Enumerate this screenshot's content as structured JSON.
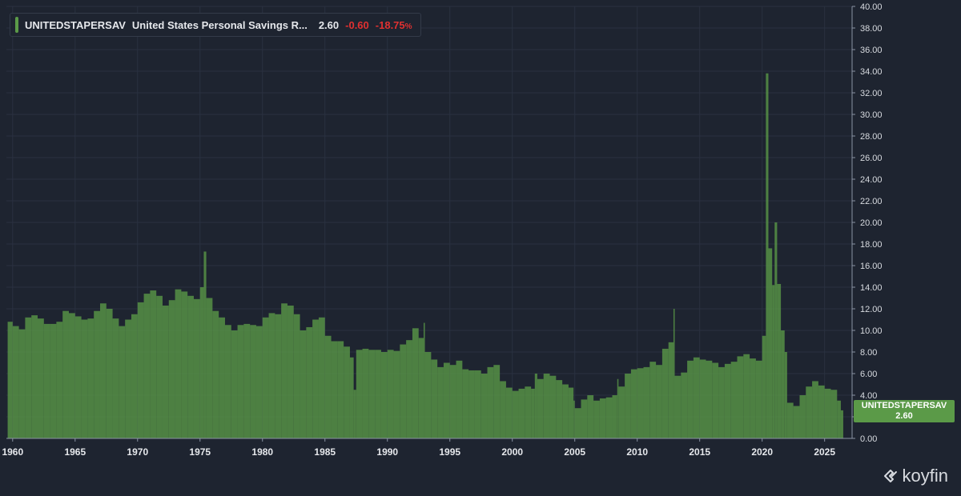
{
  "legend": {
    "ticker": "UNITEDSTAPERSAV",
    "name": "United States Personal Savings R...",
    "value": "2.60",
    "change": "-0.60",
    "change_pct": "-18.75",
    "pct_symbol": "%"
  },
  "price_tag": {
    "ticker": "UNITEDSTAPERSAV",
    "value": "2.60"
  },
  "brand": {
    "name": "koyfin"
  },
  "colors": {
    "background": "#1e2430",
    "bar": "#5b9a48",
    "grid": "#2a3140",
    "negative": "#e03131"
  },
  "chart_data": {
    "type": "bar",
    "title": "",
    "xlabel": "",
    "ylabel": "",
    "xlim": [
      1959.5,
      2027.2
    ],
    "ylim": [
      0,
      40
    ],
    "grid": true,
    "legend_position": "top-left",
    "x_ticks": [
      "1960",
      "1965",
      "1970",
      "1975",
      "1980",
      "1985",
      "1990",
      "1995",
      "2000",
      "2005",
      "2010",
      "2015",
      "2020",
      "2025"
    ],
    "y_ticks": [
      "0.00",
      "2.00",
      "4.00",
      "6.00",
      "8.00",
      "10.00",
      "12.00",
      "14.00",
      "16.00",
      "18.00",
      "20.00",
      "22.00",
      "24.00",
      "26.00",
      "28.00",
      "30.00",
      "32.00",
      "34.00",
      "36.00",
      "38.00",
      "40.00"
    ],
    "series": [
      {
        "name": "UNITEDSTAPERSAV",
        "x": [
          1959.6,
          1960.0,
          1960.5,
          1961.0,
          1961.5,
          1962.0,
          1962.5,
          1963.0,
          1963.5,
          1964.0,
          1964.5,
          1965.0,
          1965.5,
          1966.0,
          1966.5,
          1967.0,
          1967.5,
          1968.0,
          1968.5,
          1969.0,
          1969.5,
          1970.0,
          1970.5,
          1971.0,
          1971.5,
          1972.0,
          1972.5,
          1973.0,
          1973.5,
          1974.0,
          1974.5,
          1975.0,
          1975.3,
          1975.5,
          1976.0,
          1976.5,
          1977.0,
          1977.5,
          1978.0,
          1978.5,
          1979.0,
          1979.5,
          1980.0,
          1980.5,
          1981.0,
          1981.5,
          1982.0,
          1982.5,
          1983.0,
          1983.5,
          1984.0,
          1984.5,
          1985.0,
          1985.5,
          1986.0,
          1986.5,
          1987.0,
          1987.3,
          1987.5,
          1988.0,
          1988.5,
          1989.0,
          1989.5,
          1990.0,
          1990.5,
          1991.0,
          1991.5,
          1992.0,
          1992.5,
          1992.9,
          1993.0,
          1993.5,
          1994.0,
          1994.5,
          1995.0,
          1995.5,
          1996.0,
          1996.5,
          1997.0,
          1997.5,
          1998.0,
          1998.5,
          1999.0,
          1999.5,
          2000.0,
          2000.5,
          2001.0,
          2001.5,
          2001.8,
          2002.0,
          2002.5,
          2003.0,
          2003.5,
          2004.0,
          2004.5,
          2004.9,
          2005.0,
          2005.5,
          2006.0,
          2006.5,
          2007.0,
          2007.5,
          2008.0,
          2008.4,
          2008.5,
          2009.0,
          2009.5,
          2010.0,
          2010.5,
          2011.0,
          2011.5,
          2012.0,
          2012.5,
          2012.9,
          2013.0,
          2013.5,
          2014.0,
          2014.5,
          2015.0,
          2015.5,
          2016.0,
          2016.5,
          2017.0,
          2017.5,
          2018.0,
          2018.5,
          2019.0,
          2019.5,
          2020.0,
          2020.3,
          2020.5,
          2020.8,
          2021.0,
          2021.2,
          2021.5,
          2021.8,
          2022.0,
          2022.5,
          2023.0,
          2023.5,
          2024.0,
          2024.5,
          2025.0,
          2025.5,
          2026.0,
          2026.3
        ],
        "values": [
          10.8,
          10.4,
          10.1,
          11.2,
          11.4,
          11.1,
          10.6,
          10.6,
          10.8,
          11.8,
          11.6,
          11.3,
          11.0,
          11.1,
          11.8,
          12.5,
          12.0,
          11.1,
          10.4,
          11.0,
          11.5,
          12.6,
          13.4,
          13.7,
          13.2,
          12.3,
          12.8,
          13.8,
          13.6,
          13.2,
          12.9,
          14.0,
          17.3,
          13.0,
          11.8,
          11.2,
          10.5,
          10.0,
          10.5,
          10.6,
          10.5,
          10.4,
          11.2,
          11.6,
          11.5,
          12.5,
          12.3,
          11.5,
          10.0,
          10.3,
          11.0,
          11.2,
          9.5,
          9.0,
          9.0,
          8.5,
          7.5,
          4.5,
          8.2,
          8.3,
          8.2,
          8.2,
          8.0,
          8.2,
          8.1,
          8.7,
          9.1,
          10.2,
          9.3,
          10.7,
          8.0,
          7.3,
          6.6,
          7.0,
          6.8,
          7.2,
          6.4,
          6.3,
          6.3,
          6.0,
          6.6,
          6.8,
          5.3,
          4.7,
          4.4,
          4.6,
          4.8,
          4.6,
          6.0,
          5.5,
          6.0,
          5.8,
          5.4,
          5.0,
          4.7,
          3.5,
          2.8,
          3.6,
          4.0,
          3.5,
          3.7,
          3.8,
          4.0,
          5.5,
          4.8,
          6.0,
          6.4,
          6.5,
          6.6,
          7.1,
          6.8,
          8.3,
          8.9,
          12.0,
          5.8,
          6.1,
          7.2,
          7.5,
          7.3,
          7.2,
          7.0,
          6.6,
          6.9,
          7.1,
          7.6,
          7.8,
          7.4,
          7.2,
          9.5,
          33.8,
          17.6,
          14.2,
          20.0,
          14.3,
          10.0,
          8.0,
          3.3,
          3.0,
          4.0,
          4.8,
          5.3,
          4.9,
          4.6,
          4.5,
          3.5,
          2.6
        ]
      }
    ]
  }
}
